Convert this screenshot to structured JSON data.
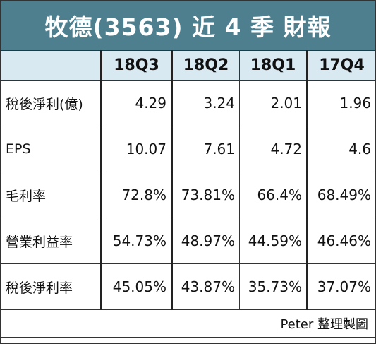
{
  "title": "牧德(3563) 近 4 季 財報",
  "columns": [
    "18Q3",
    "18Q2",
    "18Q1",
    "17Q4"
  ],
  "rows": [
    {
      "label": "稅後淨利(億)",
      "values": [
        "4.29",
        "3.24",
        "2.01",
        "1.96"
      ]
    },
    {
      "label": "EPS",
      "values": [
        "10.07",
        "7.61",
        "4.72",
        "4.6"
      ]
    },
    {
      "label": "毛利率",
      "values": [
        "72.8%",
        "73.81%",
        "66.4%",
        "68.49%"
      ]
    },
    {
      "label": "營業利益率",
      "values": [
        "54.73%",
        "48.97%",
        "44.59%",
        "46.46%"
      ]
    },
    {
      "label": "稅後淨利率",
      "values": [
        "45.05%",
        "43.87%",
        "35.73%",
        "37.07%"
      ]
    }
  ],
  "credit": "Peter 整理製圖",
  "colors": {
    "title_bg": "#4d7f8f",
    "header_bg": "#d9e9f2"
  }
}
